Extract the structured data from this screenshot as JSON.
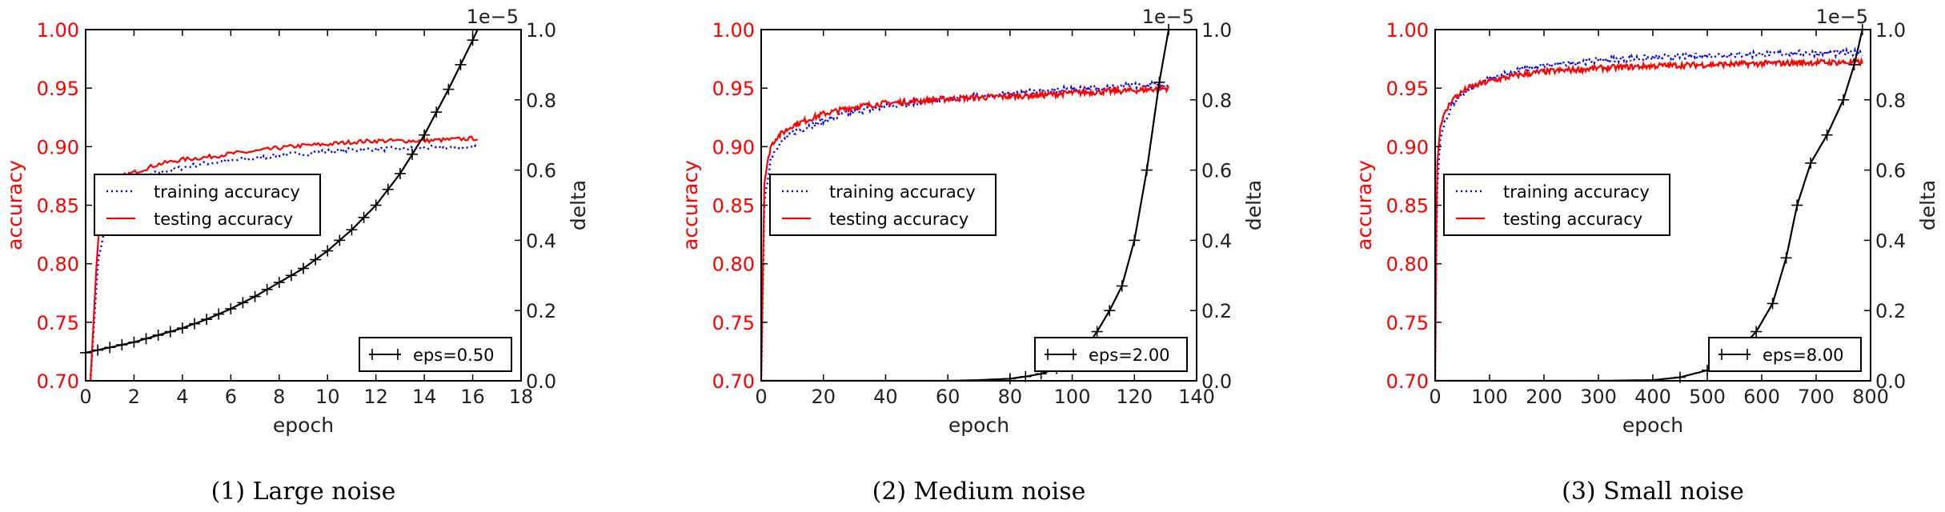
{
  "colors": {
    "training": "#0000ff",
    "testing": "#ff0000",
    "delta": "#000000",
    "left_axis": "#ff0000"
  },
  "chart_data": [
    {
      "type": "line",
      "caption": "(1) Large noise",
      "xlabel": "epoch",
      "ylabel": "accuracy",
      "y2label": "delta",
      "y2_offset_text": "1e−5",
      "xlim": [
        0,
        18
      ],
      "xticks": [
        "0",
        "2",
        "4",
        "6",
        "8",
        "10",
        "12",
        "14",
        "16",
        "18"
      ],
      "ylim": [
        0.7,
        1.0
      ],
      "yticks": [
        "0.70",
        "0.75",
        "0.80",
        "0.85",
        "0.90",
        "0.95",
        "1.00"
      ],
      "y2lim": [
        0.0,
        1.0
      ],
      "y2ticks": [
        "0.0",
        "0.2",
        "0.4",
        "0.6",
        "0.8",
        "1.0"
      ],
      "legend_accuracy": [
        "training accuracy",
        "testing accuracy"
      ],
      "legend_delta": "eps=0.50",
      "series": [
        {
          "name": "training accuracy",
          "axis": "left",
          "style": "dotted",
          "x": [
            0.2,
            0.5,
            1,
            1.5,
            2,
            3,
            4,
            5,
            6,
            7,
            8,
            9,
            10,
            11,
            12,
            13,
            14,
            15,
            16,
            16.2
          ],
          "y": [
            0.7,
            0.8,
            0.855,
            0.868,
            0.872,
            0.878,
            0.882,
            0.886,
            0.888,
            0.89,
            0.893,
            0.894,
            0.896,
            0.897,
            0.898,
            0.898,
            0.899,
            0.899,
            0.899,
            0.901
          ]
        },
        {
          "name": "testing accuracy",
          "axis": "left",
          "style": "solid",
          "x": [
            0.2,
            0.5,
            1,
            1.5,
            2,
            3,
            4,
            5,
            6,
            7,
            8,
            9,
            10,
            11,
            12,
            13,
            14,
            15,
            16,
            16.2
          ],
          "y": [
            0.7,
            0.82,
            0.865,
            0.875,
            0.878,
            0.885,
            0.889,
            0.891,
            0.894,
            0.896,
            0.899,
            0.901,
            0.902,
            0.904,
            0.905,
            0.905,
            0.905,
            0.906,
            0.907,
            0.907
          ]
        },
        {
          "name": "eps=0.50",
          "axis": "right",
          "style": "solid-plus",
          "x": [
            0,
            1,
            2,
            3,
            4,
            5,
            6,
            7,
            8,
            9,
            10,
            11,
            12,
            13,
            14,
            15,
            16,
            16.2
          ],
          "y": [
            0.08,
            0.095,
            0.11,
            0.13,
            0.15,
            0.175,
            0.205,
            0.24,
            0.28,
            0.32,
            0.37,
            0.43,
            0.5,
            0.59,
            0.7,
            0.83,
            0.97,
            1.0
          ]
        }
      ]
    },
    {
      "type": "line",
      "caption": "(2) Medium noise",
      "xlabel": "epoch",
      "ylabel": "accuracy",
      "y2label": "delta",
      "y2_offset_text": "1e−5",
      "xlim": [
        0,
        140
      ],
      "xticks": [
        "0",
        "20",
        "40",
        "60",
        "80",
        "100",
        "120",
        "140"
      ],
      "ylim": [
        0.7,
        1.0
      ],
      "yticks": [
        "0.70",
        "0.75",
        "0.80",
        "0.85",
        "0.90",
        "0.95",
        "1.00"
      ],
      "y2lim": [
        0.0,
        1.0
      ],
      "y2ticks": [
        "0.0",
        "0.2",
        "0.4",
        "0.6",
        "0.8",
        "1.0"
      ],
      "legend_accuracy": [
        "training accuracy",
        "testing accuracy"
      ],
      "legend_delta": "eps=2.00",
      "series": [
        {
          "name": "training accuracy",
          "axis": "left",
          "style": "dotted",
          "x": [
            0,
            1,
            3,
            5,
            10,
            20,
            30,
            40,
            50,
            60,
            70,
            80,
            90,
            100,
            110,
            120,
            131
          ],
          "y": [
            0.7,
            0.85,
            0.89,
            0.9,
            0.912,
            0.922,
            0.93,
            0.934,
            0.938,
            0.94,
            0.943,
            0.945,
            0.947,
            0.949,
            0.951,
            0.952,
            0.953
          ]
        },
        {
          "name": "testing accuracy",
          "axis": "left",
          "style": "solid",
          "x": [
            0,
            1,
            3,
            5,
            10,
            20,
            30,
            40,
            50,
            60,
            70,
            80,
            90,
            100,
            110,
            120,
            131
          ],
          "y": [
            0.7,
            0.87,
            0.9,
            0.908,
            0.918,
            0.928,
            0.934,
            0.937,
            0.939,
            0.941,
            0.942,
            0.943,
            0.944,
            0.946,
            0.947,
            0.948,
            0.95
          ]
        },
        {
          "name": "eps=2.00",
          "axis": "right",
          "style": "solid-plus",
          "x": [
            0,
            20,
            40,
            60,
            70,
            80,
            85,
            90,
            95,
            100,
            104,
            108,
            112,
            116,
            120,
            124,
            128,
            131
          ],
          "y": [
            0.0,
            0.0,
            0.0,
            0.0,
            0.002,
            0.006,
            0.012,
            0.02,
            0.035,
            0.055,
            0.09,
            0.14,
            0.2,
            0.27,
            0.4,
            0.6,
            0.85,
            1.0
          ]
        }
      ]
    },
    {
      "type": "line",
      "caption": "(3) Small noise",
      "xlabel": "epoch",
      "ylabel": "accuracy",
      "y2label": "delta",
      "y2_offset_text": "1e−5",
      "xlim": [
        0,
        800
      ],
      "xticks": [
        "0",
        "100",
        "200",
        "300",
        "400",
        "500",
        "600",
        "700",
        "800"
      ],
      "ylim": [
        0.7,
        1.0
      ],
      "yticks": [
        "0.70",
        "0.75",
        "0.80",
        "0.85",
        "0.90",
        "0.95",
        "1.00"
      ],
      "y2lim": [
        0.0,
        1.0
      ],
      "y2ticks": [
        "0.0",
        "0.2",
        "0.4",
        "0.6",
        "0.8",
        "1.0"
      ],
      "legend_accuracy": [
        "training accuracy",
        "testing accuracy"
      ],
      "legend_delta": "eps=8.00",
      "series": [
        {
          "name": "training accuracy",
          "axis": "left",
          "style": "dotted",
          "x": [
            0,
            3,
            10,
            30,
            60,
            100,
            150,
            200,
            300,
            400,
            500,
            600,
            700,
            785
          ],
          "y": [
            0.7,
            0.86,
            0.91,
            0.935,
            0.948,
            0.958,
            0.965,
            0.969,
            0.974,
            0.976,
            0.978,
            0.979,
            0.98,
            0.98
          ]
        },
        {
          "name": "testing accuracy",
          "axis": "left",
          "style": "solid",
          "x": [
            0,
            3,
            10,
            30,
            60,
            100,
            150,
            200,
            300,
            400,
            500,
            600,
            700,
            785
          ],
          "y": [
            0.7,
            0.88,
            0.92,
            0.94,
            0.95,
            0.956,
            0.961,
            0.964,
            0.967,
            0.969,
            0.97,
            0.971,
            0.972,
            0.972
          ]
        },
        {
          "name": "eps=8.00",
          "axis": "right",
          "style": "solid-plus",
          "x": [
            0,
            100,
            200,
            300,
            400,
            450,
            500,
            530,
            560,
            590,
            620,
            645,
            665,
            690,
            720,
            750,
            770,
            785
          ],
          "y": [
            0.0,
            0.0,
            0.0,
            0.0,
            0.002,
            0.01,
            0.03,
            0.05,
            0.09,
            0.14,
            0.22,
            0.35,
            0.5,
            0.62,
            0.7,
            0.8,
            0.9,
            1.0
          ]
        }
      ]
    }
  ]
}
